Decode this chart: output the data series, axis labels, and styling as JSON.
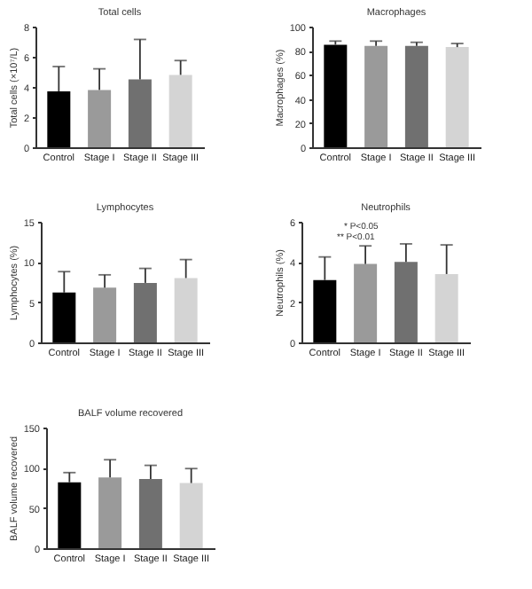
{
  "chart_data": [
    {
      "type": "bar",
      "title": "Total cells",
      "ylabel": "Total cells (×10⁷/L)",
      "categories": [
        "Control",
        "Stage I",
        "Stage II",
        "Stage III"
      ],
      "values": [
        3.7,
        3.8,
        4.5,
        4.8
      ],
      "colors": [
        "#000000",
        "#9a9a9a",
        "#707070",
        "#d4d4d4"
      ],
      "errors": [
        [
          3.7,
          5.35
        ],
        [
          3.8,
          5.2
        ],
        [
          4.5,
          7.15
        ],
        [
          4.8,
          5.75
        ]
      ],
      "ylim": [
        0,
        8
      ],
      "yticks": [
        0,
        2,
        4,
        6,
        8
      ]
    },
    {
      "type": "bar",
      "title": "Macrophages",
      "ylabel": "Macrophages (%)",
      "categories": [
        "Control",
        "Stage I",
        "Stage II",
        "Stage III"
      ],
      "values": [
        85,
        84,
        84,
        83
      ],
      "colors": [
        "#000000",
        "#9a9a9a",
        "#707070",
        "#d4d4d4"
      ],
      "errors": [
        [
          85,
          88
        ],
        [
          84,
          88
        ],
        [
          84,
          87
        ],
        [
          83,
          86
        ]
      ],
      "ylim": [
        0,
        100
      ],
      "yticks": [
        0,
        20,
        40,
        60,
        80,
        100
      ]
    },
    {
      "type": "bar",
      "title": "Lymphocytes",
      "ylabel": "Lymphocytes (%)",
      "categories": [
        "Control",
        "Stage I",
        "Stage II",
        "Stage III"
      ],
      "values": [
        6.2,
        6.8,
        7.4,
        8.0
      ],
      "colors": [
        "#000000",
        "#9a9a9a",
        "#707070",
        "#d4d4d4"
      ],
      "errors": [
        [
          6.2,
          8.8
        ],
        [
          6.8,
          8.4
        ],
        [
          7.4,
          9.2
        ],
        [
          8.0,
          10.3
        ]
      ],
      "ylim": [
        0,
        15
      ],
      "yticks": [
        0,
        5,
        10,
        15
      ]
    },
    {
      "type": "bar",
      "title": "Neutrophils",
      "ylabel": "Neutrophils (%)",
      "categories": [
        "Control",
        "Stage I",
        "Stage II",
        "Stage III"
      ],
      "values": [
        3.1,
        3.9,
        4.0,
        3.4
      ],
      "colors": [
        "#000000",
        "#9a9a9a",
        "#707070",
        "#d4d4d4"
      ],
      "errors": [
        [
          3.1,
          4.25
        ],
        [
          3.9,
          4.8
        ],
        [
          4.0,
          4.9
        ],
        [
          3.4,
          4.85
        ]
      ],
      "ylim": [
        0,
        6
      ],
      "yticks": [
        0,
        2,
        4,
        6
      ],
      "annotations": [
        "* P<0.05",
        "** P<0.01"
      ]
    },
    {
      "type": "bar",
      "title": "BALF volume recovered",
      "ylabel": "BALF volume recovered",
      "categories": [
        "Control",
        "Stage I",
        "Stage II",
        "Stage III"
      ],
      "values": [
        82,
        88,
        86,
        81
      ],
      "colors": [
        "#000000",
        "#9a9a9a",
        "#707070",
        "#d4d4d4"
      ],
      "errors": [
        [
          82,
          94
        ],
        [
          88,
          110
        ],
        [
          86,
          103
        ],
        [
          81,
          99
        ]
      ],
      "ylim": [
        0,
        150
      ],
      "yticks": [
        0,
        50,
        100,
        150
      ]
    }
  ]
}
